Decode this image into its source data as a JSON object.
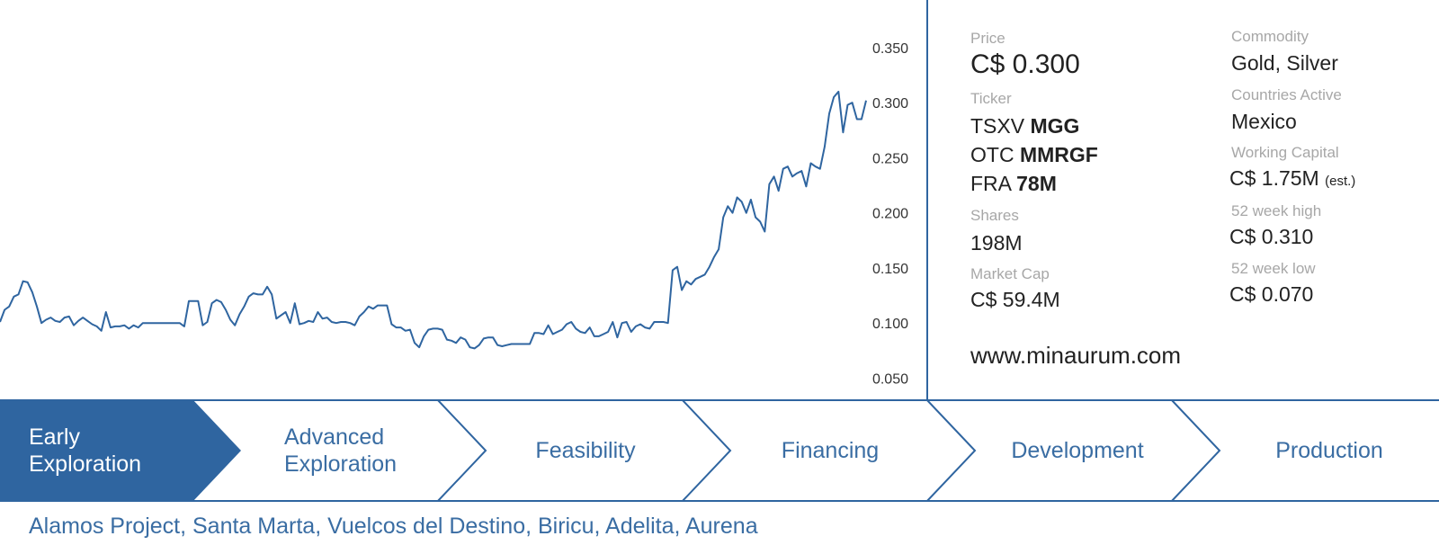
{
  "chart_data": {
    "type": "line",
    "title": "",
    "xlabel": "",
    "ylabel": "",
    "ylim": [
      0.03,
      0.385
    ],
    "yticks": [
      "0.050",
      "0.100",
      "0.150",
      "0.200",
      "0.250",
      "0.300",
      "0.350"
    ],
    "grid": false,
    "series": [
      {
        "values": [
          0.101,
          0.112,
          0.115,
          0.124,
          0.126,
          0.138,
          0.137,
          0.128,
          0.115,
          0.1,
          0.103,
          0.105,
          0.102,
          0.101,
          0.105,
          0.106,
          0.098,
          0.102,
          0.105,
          0.102,
          0.099,
          0.097,
          0.093,
          0.11,
          0.096,
          0.097,
          0.097,
          0.098,
          0.095,
          0.098,
          0.096,
          0.1,
          0.1,
          0.1,
          0.1,
          0.1,
          0.1,
          0.1,
          0.1,
          0.1,
          0.097,
          0.12,
          0.12,
          0.12,
          0.098,
          0.101,
          0.118,
          0.121,
          0.119,
          0.112,
          0.103,
          0.098,
          0.108,
          0.115,
          0.124,
          0.127,
          0.126,
          0.126,
          0.133,
          0.126,
          0.104,
          0.107,
          0.11,
          0.1,
          0.118,
          0.099,
          0.1,
          0.102,
          0.101,
          0.11,
          0.104,
          0.105,
          0.101,
          0.1,
          0.101,
          0.101,
          0.1,
          0.098,
          0.106,
          0.11,
          0.115,
          0.113,
          0.116,
          0.116,
          0.116,
          0.099,
          0.096,
          0.096,
          0.093,
          0.094,
          0.082,
          0.078,
          0.088,
          0.094,
          0.095,
          0.095,
          0.094,
          0.085,
          0.084,
          0.082,
          0.087,
          0.085,
          0.078,
          0.077,
          0.08,
          0.086,
          0.087,
          0.087,
          0.08,
          0.079,
          0.08,
          0.081,
          0.081,
          0.081,
          0.081,
          0.081,
          0.091,
          0.091,
          0.09,
          0.098,
          0.09,
          0.092,
          0.094,
          0.099,
          0.101,
          0.095,
          0.092,
          0.091,
          0.096,
          0.088,
          0.088,
          0.09,
          0.092,
          0.101,
          0.087,
          0.1,
          0.101,
          0.092,
          0.097,
          0.099,
          0.096,
          0.095,
          0.101,
          0.101,
          0.101,
          0.1,
          0.148,
          0.151,
          0.13,
          0.138,
          0.135,
          0.14,
          0.142,
          0.144,
          0.151,
          0.16,
          0.167,
          0.196,
          0.206,
          0.2,
          0.214,
          0.21,
          0.2,
          0.212,
          0.196,
          0.192,
          0.183,
          0.226,
          0.233,
          0.22,
          0.24,
          0.242,
          0.233,
          0.236,
          0.238,
          0.224,
          0.245,
          0.242,
          0.24,
          0.26,
          0.29,
          0.305,
          0.31,
          0.273,
          0.298,
          0.3,
          0.285,
          0.285,
          0.302
        ]
      }
    ]
  },
  "info": {
    "price_label": "Price",
    "price_value": "C$ 0.300",
    "ticker_label": "Ticker",
    "tickers": [
      {
        "exchange": "TSXV",
        "symbol": "MGG"
      },
      {
        "exchange": "OTC",
        "symbol": "MMRGF"
      },
      {
        "exchange": "FRA",
        "symbol": "78M"
      }
    ],
    "shares_label": "Shares",
    "shares_value": "198M",
    "market_cap_label": "Market Cap",
    "market_cap_value": "C$ 59.4M",
    "website": "www.minaurum.com",
    "commodity_label": "Commodity",
    "commodity_value": "Gold, Silver",
    "countries_label": "Countries Active",
    "countries_value": "Mexico",
    "working_capital_label": "Working Capital",
    "working_capital_value": "C$ 1.75M",
    "working_capital_note": "(est.)",
    "high_label": "52 week high",
    "high_value": "C$ 0.310",
    "low_label": "52 week low",
    "low_value": "C$ 0.070"
  },
  "stages": [
    {
      "line1": "Early",
      "line2": "Exploration"
    },
    {
      "line1": "Advanced",
      "line2": "Exploration"
    },
    {
      "line1": "Feasibility",
      "line2": ""
    },
    {
      "line1": "Financing",
      "line2": ""
    },
    {
      "line1": "Development",
      "line2": ""
    },
    {
      "line1": "Production",
      "line2": ""
    }
  ],
  "projects": "Alamos Project, Santa Marta, Vuelcos del Destino, Biricu, Adelita, Aurena",
  "colors": {
    "accent": "#2f65a0",
    "line": "#2f65a0",
    "label_gray": "#a7a7a7",
    "stage_text": "#3a6da3"
  }
}
